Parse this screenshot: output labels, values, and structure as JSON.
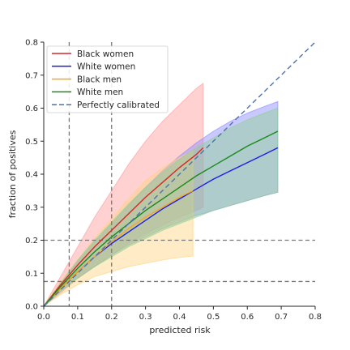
{
  "chart_data": {
    "type": "line",
    "xlabel": "predicted risk",
    "ylabel": "fraction of positives",
    "xlim": [
      0,
      0.8
    ],
    "ylim": [
      0,
      0.8
    ],
    "xticks": [
      "0.0",
      "0.1",
      "0.2",
      "0.3",
      "0.4",
      "0.5",
      "0.6",
      "0.7",
      "0.8"
    ],
    "yticks": [
      "0.0",
      "0.1",
      "0.2",
      "0.3",
      "0.4",
      "0.5",
      "0.6",
      "0.7",
      "0.8"
    ],
    "legend_position": "top-left",
    "grid": false,
    "reference_lines": {
      "vertical_x": [
        0.075,
        0.2
      ],
      "horizontal_y": [
        0.075,
        0.2
      ]
    },
    "series": [
      {
        "name": "Black women",
        "color": "#d62728",
        "band_color": "#ff9999",
        "x": [
          0.0,
          0.05,
          0.1,
          0.15,
          0.2,
          0.25,
          0.3,
          0.35,
          0.4,
          0.45,
          0.47
        ],
        "y": [
          0.0,
          0.065,
          0.125,
          0.18,
          0.23,
          0.28,
          0.33,
          0.375,
          0.42,
          0.46,
          0.48
        ],
        "lower": [
          0.0,
          0.04,
          0.085,
          0.12,
          0.155,
          0.19,
          0.22,
          0.245,
          0.27,
          0.29,
          0.3
        ],
        "upper": [
          0.0,
          0.09,
          0.18,
          0.27,
          0.35,
          0.43,
          0.5,
          0.56,
          0.61,
          0.66,
          0.675
        ]
      },
      {
        "name": "White women",
        "color": "#1f1fe6",
        "band_color": "#8888ff",
        "x": [
          0.0,
          0.05,
          0.1,
          0.15,
          0.2,
          0.25,
          0.3,
          0.35,
          0.4,
          0.45,
          0.5,
          0.55,
          0.6,
          0.65,
          0.69
        ],
        "y": [
          0.0,
          0.055,
          0.105,
          0.15,
          0.19,
          0.225,
          0.26,
          0.295,
          0.325,
          0.355,
          0.385,
          0.41,
          0.435,
          0.46,
          0.48
        ],
        "lower": [
          0.0,
          0.045,
          0.085,
          0.12,
          0.155,
          0.185,
          0.21,
          0.235,
          0.255,
          0.275,
          0.29,
          0.305,
          0.32,
          0.335,
          0.345
        ],
        "upper": [
          0.0,
          0.07,
          0.135,
          0.195,
          0.25,
          0.305,
          0.36,
          0.41,
          0.455,
          0.495,
          0.53,
          0.56,
          0.585,
          0.605,
          0.62
        ]
      },
      {
        "name": "Black men",
        "color": "#f5a623",
        "band_color": "#ffd27f",
        "x": [
          0.0,
          0.05,
          0.1,
          0.15,
          0.2,
          0.25,
          0.3,
          0.35,
          0.4,
          0.44
        ],
        "y": [
          0.0,
          0.055,
          0.105,
          0.15,
          0.195,
          0.235,
          0.27,
          0.3,
          0.33,
          0.35
        ],
        "lower": [
          0.0,
          0.035,
          0.065,
          0.09,
          0.105,
          0.12,
          0.13,
          0.14,
          0.148,
          0.152
        ],
        "upper": [
          0.0,
          0.075,
          0.14,
          0.205,
          0.265,
          0.325,
          0.38,
          0.42,
          0.45,
          0.47
        ]
      },
      {
        "name": "White men",
        "color": "#1a8a1a",
        "band_color": "#8fd18f",
        "x": [
          0.0,
          0.05,
          0.1,
          0.15,
          0.2,
          0.25,
          0.3,
          0.35,
          0.4,
          0.45,
          0.5,
          0.55,
          0.6,
          0.65,
          0.69
        ],
        "y": [
          0.0,
          0.06,
          0.115,
          0.165,
          0.21,
          0.25,
          0.29,
          0.325,
          0.36,
          0.395,
          0.425,
          0.455,
          0.485,
          0.51,
          0.53
        ],
        "lower": [
          0.0,
          0.045,
          0.085,
          0.12,
          0.15,
          0.18,
          0.205,
          0.23,
          0.25,
          0.27,
          0.29,
          0.305,
          0.32,
          0.335,
          0.345
        ],
        "upper": [
          0.0,
          0.07,
          0.14,
          0.2,
          0.255,
          0.31,
          0.36,
          0.405,
          0.445,
          0.48,
          0.51,
          0.54,
          0.565,
          0.585,
          0.6
        ]
      },
      {
        "name": "Perfectly calibrated",
        "color": "#4c72b0",
        "dashed": true,
        "x": [
          0.0,
          0.8
        ],
        "y": [
          0.0,
          0.8
        ]
      }
    ]
  }
}
